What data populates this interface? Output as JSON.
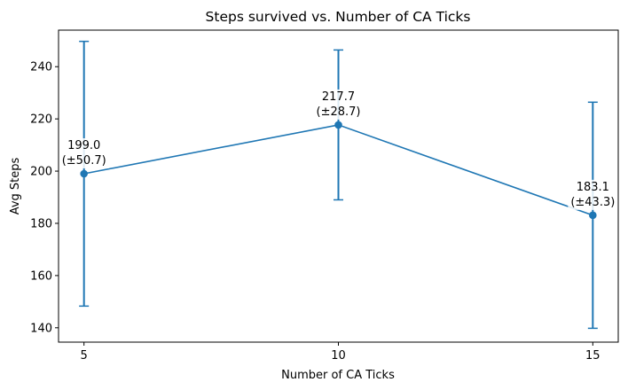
{
  "chart_data": {
    "type": "line",
    "title": "Steps survived vs. Number of CA Ticks",
    "xlabel": "Number of CA Ticks",
    "ylabel": "Avg Steps",
    "x": [
      5,
      10,
      15
    ],
    "x_ticks": [
      "5",
      "10",
      "15"
    ],
    "y_ticks": [
      "140",
      "160",
      "180",
      "200",
      "220",
      "240"
    ],
    "ylim": [
      134.5,
      254
    ],
    "series": [
      {
        "values": [
          199.0,
          217.7,
          183.1
        ],
        "errors": [
          50.7,
          28.7,
          43.3
        ],
        "labels": [
          {
            "value": "199.0",
            "error": "(±50.7)"
          },
          {
            "value": "217.7",
            "error": "(±28.7)"
          },
          {
            "value": "183.1",
            "error": "(±43.3)"
          }
        ],
        "color": "#1f77b4",
        "marker": "circle",
        "error_bars": true
      }
    ],
    "grid": false,
    "legend": "none"
  }
}
